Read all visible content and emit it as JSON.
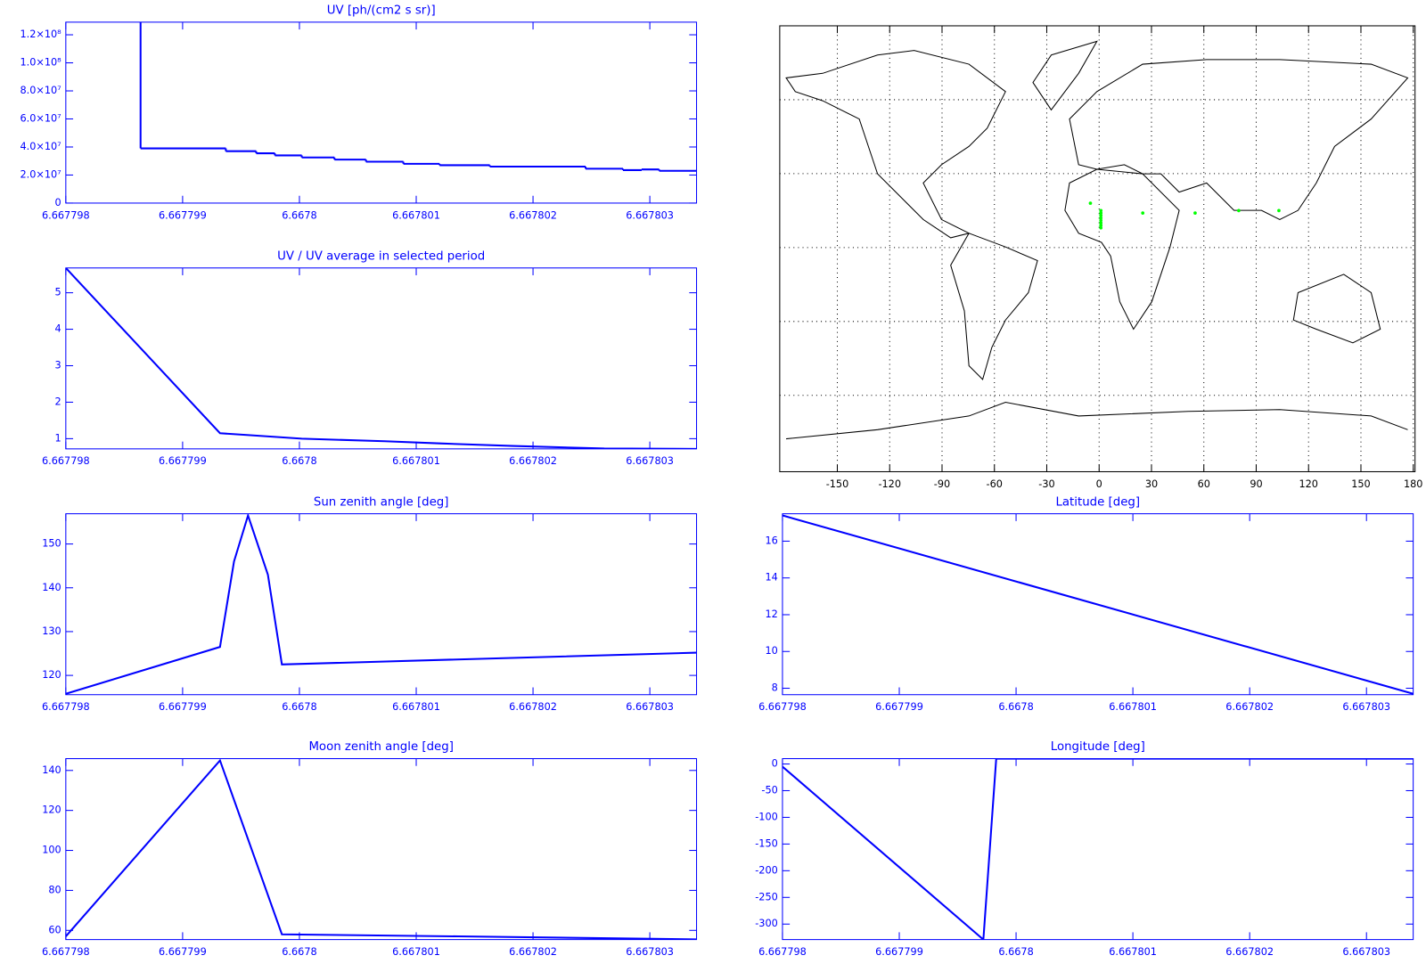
{
  "chart_data": [
    {
      "type": "line",
      "drawstyle": "steps-post",
      "title": "UV [ph/(cm2 s sr)]",
      "color": "#0000ff",
      "axis_color": "#0000ff",
      "x": [
        6.66779864,
        6.66779864,
        6.66779937,
        6.66779963,
        6.66779979,
        6.66780002,
        6.6678003,
        6.66780057,
        6.66780089,
        6.6678012,
        6.66780163,
        6.66780245,
        6.66780277,
        6.66780293,
        6.66780308,
        6.66780341
      ],
      "values": [
        130000000,
        39000000,
        37000000,
        35500000,
        34000000,
        32500000,
        31000000,
        29500000,
        28000000,
        27000000,
        26000000,
        24500000,
        23500000,
        24000000,
        23000000,
        23000000
      ],
      "xlim": [
        6.667798,
        6.6678034
      ],
      "xticks": [
        6.667798,
        6.667799,
        6.6678,
        6.667801,
        6.667802,
        6.667803
      ],
      "ylim": [
        0,
        129000000
      ],
      "yticks": [
        0,
        {
          "value": 20000000,
          "label": "2.0×10⁷"
        },
        {
          "value": 40000000,
          "label": "4.0×10⁷"
        },
        {
          "value": 60000000,
          "label": "6.0×10⁷"
        },
        {
          "value": 80000000,
          "label": "8.0×10⁷"
        },
        {
          "value": 100000000,
          "label": "1.0×10⁸"
        },
        {
          "value": 120000000,
          "label": "1.2×10⁸"
        }
      ]
    },
    {
      "type": "line",
      "title": "UV / UV average in selected period",
      "color": "#0000ff",
      "axis_color": "#0000ff",
      "x": [
        6.667798,
        6.66779932,
        6.66779955,
        6.66780002,
        6.66780073,
        6.6678012,
        6.66780183,
        6.66780261,
        6.66780341
      ],
      "values": [
        5.68,
        1.15,
        1.1,
        1.0,
        0.93,
        0.87,
        0.8,
        0.73,
        0.72
      ],
      "xlim": [
        6.667798,
        6.6678034
      ],
      "xticks": [
        6.667798,
        6.667799,
        6.6678,
        6.667801,
        6.667802,
        6.667803
      ],
      "ylim": [
        0.72,
        5.68
      ],
      "yticks": [
        1,
        2,
        3,
        4,
        5
      ]
    },
    {
      "type": "scatter",
      "color": "#00ff00",
      "axis_color": "#000000",
      "grid": true,
      "x": [
        -5,
        1,
        1,
        1,
        1,
        1,
        1,
        1,
        1,
        25,
        55,
        80,
        103
      ],
      "values": [
        18,
        15,
        14,
        13,
        12,
        11,
        10,
        9,
        8,
        14,
        14,
        15,
        15
      ],
      "xlim": [
        -183,
        181
      ],
      "xticks": [
        -150,
        -120,
        -90,
        -60,
        -30,
        0,
        30,
        60,
        90,
        120,
        150,
        180
      ],
      "ylim": [
        -91,
        90
      ],
      "yticks": [
        -60,
        -30,
        0,
        30,
        60
      ]
    },
    {
      "type": "line",
      "title": "Sun zenith angle [deg]",
      "color": "#0000ff",
      "axis_color": "#0000ff",
      "x": [
        6.667798,
        6.66779932,
        6.66779944,
        6.66779956,
        6.66779973,
        6.66779985,
        6.66780341
      ],
      "values": [
        115.8,
        126.5,
        146,
        156.5,
        143,
        122.5,
        125.2
      ],
      "xlim": [
        6.667798,
        6.6678034
      ],
      "xticks": [
        6.667798,
        6.667799,
        6.6678,
        6.667801,
        6.667802,
        6.667803
      ],
      "ylim": [
        115.6,
        156.9
      ],
      "yticks": [
        120,
        130,
        140,
        150
      ]
    },
    {
      "type": "line",
      "title": "Latitude [deg]",
      "color": "#0000ff",
      "axis_color": "#0000ff",
      "x": [
        6.667798,
        6.6678034
      ],
      "values": [
        17.4,
        7.7
      ],
      "xlim": [
        6.667798,
        6.6678034
      ],
      "xticks": [
        6.667798,
        6.667799,
        6.6678,
        6.667801,
        6.667802,
        6.667803
      ],
      "ylim": [
        7.65,
        17.49
      ],
      "yticks": [
        8,
        10,
        12,
        14,
        16
      ]
    },
    {
      "type": "line",
      "title": "Moon zenith angle [deg]",
      "color": "#0000ff",
      "axis_color": "#0000ff",
      "x": [
        6.667798,
        6.66779932,
        6.66779985,
        6.66780136,
        6.66780341
      ],
      "values": [
        57,
        145,
        58,
        57,
        55.5
      ],
      "xlim": [
        6.667798,
        6.6678034
      ],
      "xticks": [
        6.667798,
        6.667799,
        6.6678,
        6.667801,
        6.667802,
        6.667803
      ],
      "ylim": [
        55.4,
        145.9
      ],
      "yticks": [
        60,
        80,
        100,
        120,
        140
      ]
    },
    {
      "type": "line",
      "title": "Longitude [deg]",
      "color": "#0000ff",
      "axis_color": "#0000ff",
      "x": [
        6.667798,
        6.66779972,
        6.66779983,
        6.6678034
      ],
      "values": [
        -5,
        -329,
        10,
        10
      ],
      "xlim": [
        6.667798,
        6.6678034
      ],
      "xticks": [
        6.667798,
        6.667799,
        6.6678,
        6.667801,
        6.667802,
        6.667803
      ],
      "ylim": [
        -329,
        10
      ],
      "yticks": [
        -300,
        -250,
        -200,
        -150,
        -100,
        -50,
        0
      ]
    }
  ]
}
